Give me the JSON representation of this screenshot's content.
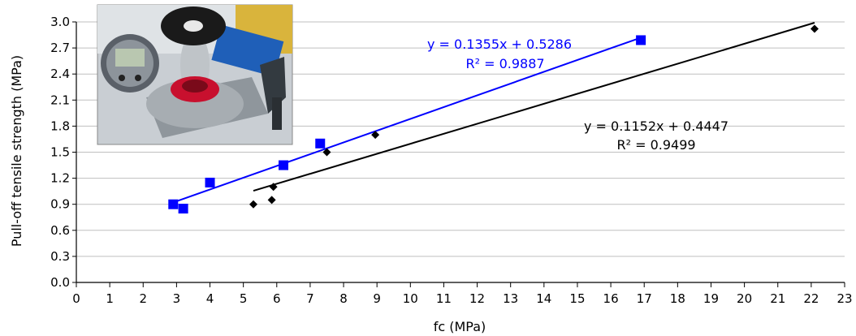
{
  "chart_data": {
    "type": "scatter",
    "title": "",
    "xlabel": "fc (MPa)",
    "ylabel": "Pull-off tensile strength (MPa)",
    "xlim": [
      0,
      23
    ],
    "ylim": [
      0,
      3.0
    ],
    "grid": true,
    "x_ticks": [
      "0",
      "1",
      "2",
      "3",
      "4",
      "5",
      "6",
      "7",
      "8",
      "9",
      "10",
      "11",
      "12",
      "13",
      "14",
      "15",
      "16",
      "17",
      "18",
      "19",
      "20",
      "21",
      "22",
      "23"
    ],
    "y_ticks": [
      "0.0",
      "0.3",
      "0.6",
      "0.9",
      "1.2",
      "1.5",
      "1.8",
      "2.1",
      "2.4",
      "2.7",
      "3.0"
    ],
    "series": [
      {
        "marker": "square",
        "color": "#0000ff",
        "points": [
          [
            2.9,
            0.9
          ],
          [
            3.2,
            0.85
          ],
          [
            4.0,
            1.15
          ],
          [
            6.2,
            1.35
          ],
          [
            7.3,
            1.6
          ],
          [
            16.9,
            2.79
          ]
        ],
        "trendline": {
          "slope": 0.1355,
          "intercept": 0.5286,
          "x_range": [
            2.9,
            16.9
          ]
        },
        "equation": "y = 0.1355x + 0.5286",
        "r2": "R² = 0.9887"
      },
      {
        "marker": "diamond",
        "color": "#000000",
        "points": [
          [
            5.3,
            0.9
          ],
          [
            5.85,
            0.95
          ],
          [
            5.9,
            1.1
          ],
          [
            7.5,
            1.5
          ],
          [
            8.95,
            1.7
          ],
          [
            22.1,
            2.92
          ]
        ],
        "trendline": {
          "slope": 0.1152,
          "intercept": 0.4447,
          "x_range": [
            5.3,
            22.1
          ]
        },
        "equation": "y = 0.1152x + 0.4447",
        "r2": "R² = 0.9499"
      }
    ],
    "inset_image": "photo of pull-off adhesion tester with digital gauge"
  }
}
